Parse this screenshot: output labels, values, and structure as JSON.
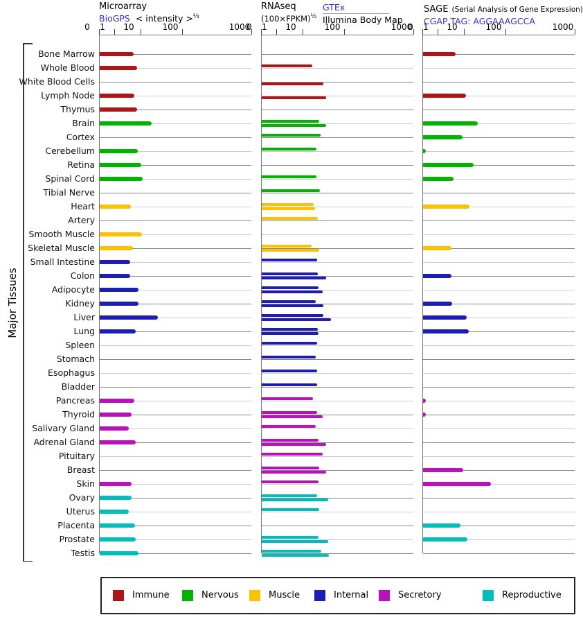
{
  "headers": {
    "microarray": {
      "title": "Microarray",
      "source": "BioGPS",
      "measure": "< intensity >",
      "exponent": "⅔"
    },
    "rnaseq": {
      "title": "RNAseq",
      "measure": "(100×FPKM)",
      "exponent": "½",
      "source1": "GTEx",
      "source2": "Illumina Body Map"
    },
    "sage": {
      "title": "SAGE",
      "subtitle": "(Serial Analysis of Gene Expression)",
      "source": "CGAP",
      "tag": "TAG: AGGAAAGCCA"
    }
  },
  "axis": {
    "ticks": [
      "0",
      "1",
      "10",
      "100",
      "1000"
    ]
  },
  "side_label": "Major Tissues",
  "legend": [
    {
      "label": "Immune",
      "color": "#b11414"
    },
    {
      "label": "Nervous",
      "color": "#00b400"
    },
    {
      "label": "Muscle",
      "color": "#fcc200"
    },
    {
      "label": "Internal",
      "color": "#1c1cba"
    },
    {
      "label": "Secretory",
      "color": "#bb10bb"
    },
    {
      "label": "Reproductive",
      "color": "#00bebe"
    }
  ],
  "chart_data": {
    "type": "bar",
    "orientation": "horizontal",
    "title": "Gene expression in major tissues by Microarray (BioGPS), RNAseq (GTEx / Illumina Body Map) and SAGE (CGAP)",
    "x_scale": "hybrid: linear 0-1 then log decades 1-10-100-1000",
    "x_ticks": [
      0,
      1,
      10,
      100,
      1000
    ],
    "series_note": "microarray = BioGPS intensity^(2/3); rnaseq_gtex & rnaseq_illumina = (100×FPKM)^(1/2); sage = CGAP tag AGGAAAGCCA counts; null = no bar shown",
    "tissues": [
      {
        "name": "Bone Marrow",
        "category": "Immune",
        "microarray": 5.1,
        "rnaseq_gtex": null,
        "rnaseq_illumina": null,
        "sage": 4.6
      },
      {
        "name": "Whole Blood",
        "category": "Immune",
        "microarray": 7.0,
        "rnaseq_gtex": 16.5,
        "rnaseq_illumina": null,
        "sage": null
      },
      {
        "name": "White Blood Cells",
        "category": "Immune",
        "microarray": null,
        "rnaseq_gtex": null,
        "rnaseq_illumina": 30,
        "sage": null
      },
      {
        "name": "Lymph Node",
        "category": "Immune",
        "microarray": 5.5,
        "rnaseq_gtex": null,
        "rnaseq_illumina": 35,
        "sage": 10.8
      },
      {
        "name": "Thymus",
        "category": "Immune",
        "microarray": 7.0,
        "rnaseq_gtex": null,
        "rnaseq_illumina": null,
        "sage": null
      },
      {
        "name": "Brain",
        "category": "Nervous",
        "microarray": 18,
        "rnaseq_gtex": 24,
        "rnaseq_illumina": 35,
        "sage": 21
      },
      {
        "name": "Cortex",
        "category": "Nervous",
        "microarray": null,
        "rnaseq_gtex": 26,
        "rnaseq_illumina": null,
        "sage": 8.3
      },
      {
        "name": "Cerebellum",
        "category": "Nervous",
        "microarray": 7.4,
        "rnaseq_gtex": 21,
        "rnaseq_illumina": null,
        "sage": 0.2
      },
      {
        "name": "Retina",
        "category": "Nervous",
        "microarray": 10,
        "rnaseq_gtex": null,
        "rnaseq_illumina": null,
        "sage": 16.5
      },
      {
        "name": "Spinal Cord",
        "category": "Nervous",
        "microarray": 10.8,
        "rnaseq_gtex": 21,
        "rnaseq_illumina": null,
        "sage": 3.8
      },
      {
        "name": "Tibial Nerve",
        "category": "Nervous",
        "microarray": null,
        "rnaseq_gtex": 25,
        "rnaseq_illumina": null,
        "sage": null
      },
      {
        "name": "Heart",
        "category": "Muscle",
        "microarray": 4.0,
        "rnaseq_gtex": 17.8,
        "rnaseq_illumina": 19.2,
        "sage": 13.1
      },
      {
        "name": "Artery",
        "category": "Muscle",
        "microarray": null,
        "rnaseq_gtex": 22.4,
        "rnaseq_illumina": null,
        "sage": null
      },
      {
        "name": "Smooth Muscle",
        "category": "Muscle",
        "microarray": 10.4,
        "rnaseq_gtex": null,
        "rnaseq_illumina": null,
        "sage": null
      },
      {
        "name": "Skeletal Muscle",
        "category": "Muscle",
        "microarray": 4.8,
        "rnaseq_gtex": 15.8,
        "rnaseq_illumina": 24,
        "sage": 3.2
      },
      {
        "name": "Small Intestine",
        "category": "Internal",
        "microarray": 3.8,
        "rnaseq_gtex": 21.5,
        "rnaseq_illumina": null,
        "sage": null
      },
      {
        "name": "Colon",
        "category": "Internal",
        "microarray": 3.8,
        "rnaseq_gtex": 22.4,
        "rnaseq_illumina": 35,
        "sage": 3.2
      },
      {
        "name": "Adipocyte",
        "category": "Internal",
        "microarray": 7.8,
        "rnaseq_gtex": 23.2,
        "rnaseq_illumina": 29.2,
        "sage": null
      },
      {
        "name": "Kidney",
        "category": "Internal",
        "microarray": 7.8,
        "rnaseq_gtex": 20,
        "rnaseq_illumina": 30,
        "sage": 3.4
      },
      {
        "name": "Liver",
        "category": "Internal",
        "microarray": 25,
        "rnaseq_gtex": 30,
        "rnaseq_illumina": 46,
        "sage": 11.2
      },
      {
        "name": "Lung",
        "category": "Internal",
        "microarray": 6.2,
        "rnaseq_gtex": 22.4,
        "rnaseq_illumina": 23.2,
        "sage": 12.6
      },
      {
        "name": "Spleen",
        "category": "Internal",
        "microarray": null,
        "rnaseq_gtex": 21.5,
        "rnaseq_illumina": null,
        "sage": null
      },
      {
        "name": "Stomach",
        "category": "Internal",
        "microarray": null,
        "rnaseq_gtex": 20,
        "rnaseq_illumina": null,
        "sage": null
      },
      {
        "name": "Esophagus",
        "category": "Internal",
        "microarray": null,
        "rnaseq_gtex": 21.5,
        "rnaseq_illumina": null,
        "sage": null
      },
      {
        "name": "Bladder",
        "category": "Internal",
        "microarray": null,
        "rnaseq_gtex": 21.5,
        "rnaseq_illumina": null,
        "sage": null
      },
      {
        "name": "Pancreas",
        "category": "Secretory",
        "microarray": 5.5,
        "rnaseq_gtex": 17,
        "rnaseq_illumina": null,
        "sage": 0.2
      },
      {
        "name": "Thyroid",
        "category": "Secretory",
        "microarray": 4.3,
        "rnaseq_gtex": 21.5,
        "rnaseq_illumina": 29.2,
        "sage": 0.2
      },
      {
        "name": "Salivary Gland",
        "category": "Secretory",
        "microarray": 3.4,
        "rnaseq_gtex": 20,
        "rnaseq_illumina": null,
        "sage": null
      },
      {
        "name": "Adrenal Gland",
        "category": "Secretory",
        "microarray": 6.2,
        "rnaseq_gtex": 23.2,
        "rnaseq_illumina": 35,
        "sage": null
      },
      {
        "name": "Pituitary",
        "category": "Secretory",
        "microarray": null,
        "rnaseq_gtex": 29.2,
        "rnaseq_illumina": null,
        "sage": null
      },
      {
        "name": "Breast",
        "category": "Secretory",
        "microarray": null,
        "rnaseq_gtex": 24,
        "rnaseq_illumina": 35,
        "sage": 8.9
      },
      {
        "name": "Skin",
        "category": "Secretory",
        "microarray": 4.3,
        "rnaseq_gtex": 23.2,
        "rnaseq_illumina": null,
        "sage": 43
      },
      {
        "name": "Ovary",
        "category": "Reproductive",
        "microarray": 4.3,
        "rnaseq_gtex": 21.5,
        "rnaseq_illumina": 40,
        "sage": null
      },
      {
        "name": "Uterus",
        "category": "Reproductive",
        "microarray": 3.4,
        "rnaseq_gtex": 24,
        "rnaseq_illumina": null,
        "sage": null
      },
      {
        "name": "Placenta",
        "category": "Reproductive",
        "microarray": 5.8,
        "rnaseq_gtex": null,
        "rnaseq_illumina": null,
        "sage": 7.0
      },
      {
        "name": "Prostate",
        "category": "Reproductive",
        "microarray": 6.2,
        "rnaseq_gtex": 23.2,
        "rnaseq_illumina": 40,
        "sage": 11.6
      },
      {
        "name": "Testis",
        "category": "Reproductive",
        "microarray": 7.8,
        "rnaseq_gtex": 27,
        "rnaseq_illumina": 41,
        "sage": null
      }
    ]
  }
}
